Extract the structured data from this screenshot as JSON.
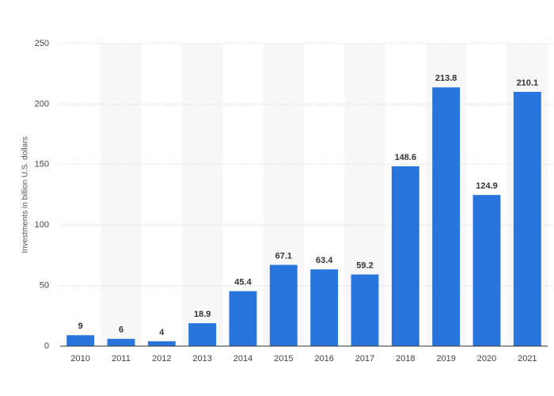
{
  "chart_data": {
    "type": "bar",
    "y_label": "Investments in billion U.S. dollars",
    "categories": [
      "2010",
      "2011",
      "2012",
      "2013",
      "2014",
      "2015",
      "2016",
      "2017",
      "2018",
      "2019",
      "2020",
      "2021"
    ],
    "values": [
      9,
      6,
      4,
      18.9,
      45.4,
      67.1,
      63.4,
      59.2,
      148.6,
      213.8,
      124.9,
      210.1
    ],
    "color": "#2876dd",
    "ylim": [
      0,
      250
    ],
    "yticks": [
      0,
      50,
      100,
      150,
      200,
      250
    ],
    "grid": true
  }
}
